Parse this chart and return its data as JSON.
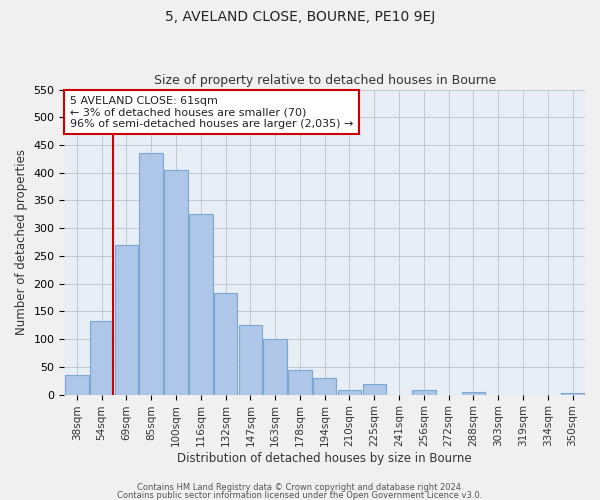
{
  "title": "5, AVELAND CLOSE, BOURNE, PE10 9EJ",
  "subtitle": "Size of property relative to detached houses in Bourne",
  "xlabel": "Distribution of detached houses by size in Bourne",
  "ylabel": "Number of detached properties",
  "bar_labels": [
    "38sqm",
    "54sqm",
    "69sqm",
    "85sqm",
    "100sqm",
    "116sqm",
    "132sqm",
    "147sqm",
    "163sqm",
    "178sqm",
    "194sqm",
    "210sqm",
    "225sqm",
    "241sqm",
    "256sqm",
    "272sqm",
    "288sqm",
    "303sqm",
    "319sqm",
    "334sqm",
    "350sqm"
  ],
  "bar_heights": [
    35,
    133,
    270,
    435,
    405,
    325,
    183,
    125,
    100,
    45,
    30,
    8,
    20,
    0,
    8,
    0,
    5,
    0,
    0,
    0,
    3
  ],
  "bar_color": "#aec6e8",
  "bar_edge_color": "#7aa8d4",
  "highlight_bar_index": 1,
  "highlight_line_color": "#cc0000",
  "ylim": [
    0,
    550
  ],
  "yticks": [
    0,
    50,
    100,
    150,
    200,
    250,
    300,
    350,
    400,
    450,
    500,
    550
  ],
  "annotation_title": "5 AVELAND CLOSE: 61sqm",
  "annotation_line1": "← 3% of detached houses are smaller (70)",
  "annotation_line2": "96% of semi-detached houses are larger (2,035) →",
  "footer_line1": "Contains HM Land Registry data © Crown copyright and database right 2024.",
  "footer_line2": "Contains public sector information licensed under the Open Government Licence v3.0.",
  "bg_color": "#f0f0f0",
  "plot_bg_color": "#e8eef5"
}
